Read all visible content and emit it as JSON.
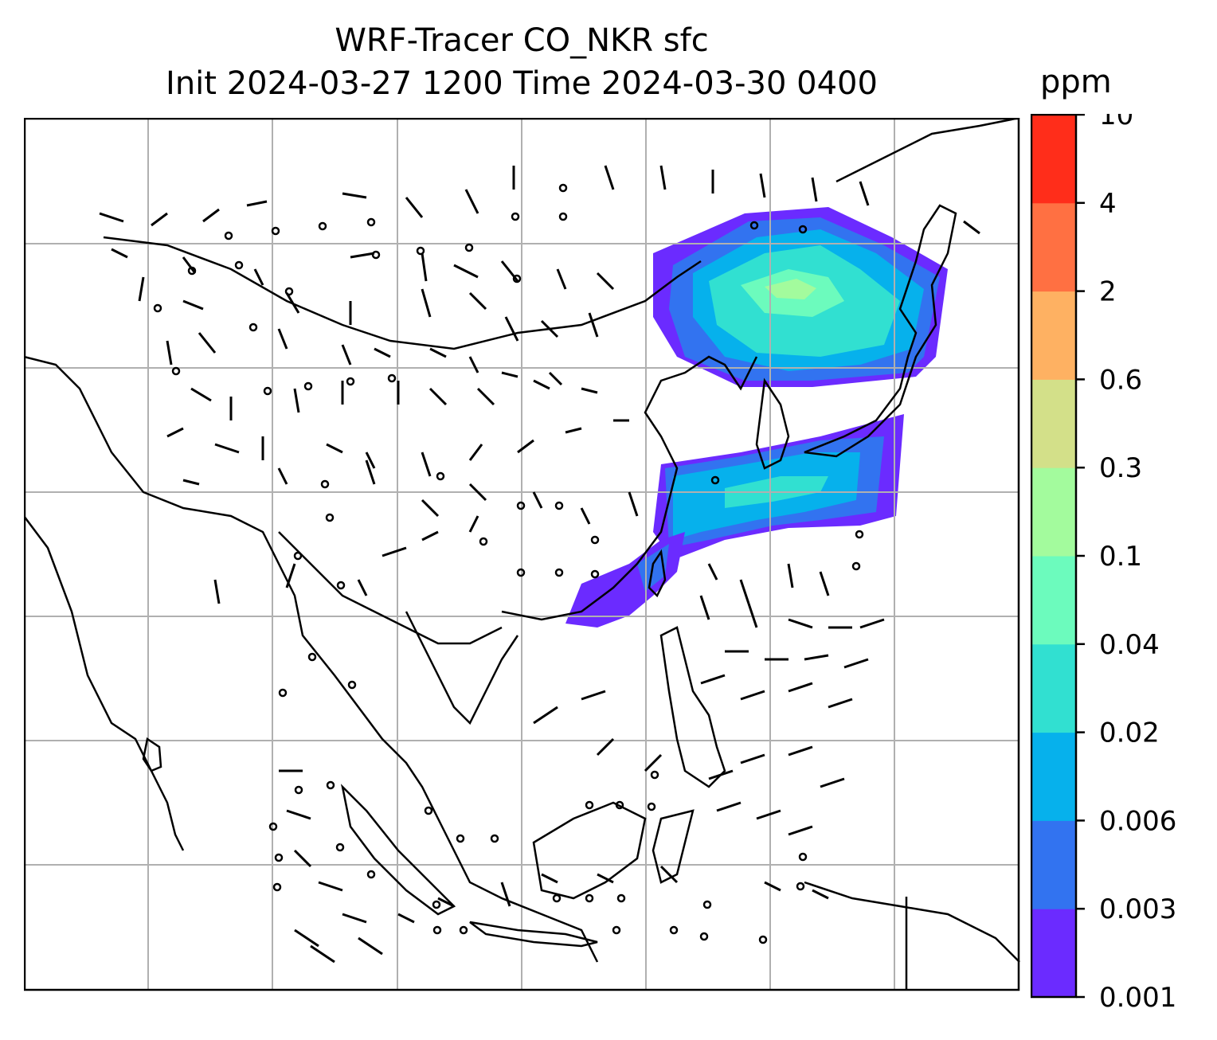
{
  "figure": {
    "title_line1": "WRF-Tracer CO_NKR sfc",
    "title_line2": "Init 2024-03-27 1200 Time 2024-03-30 0400"
  },
  "map": {
    "projection_grid": true,
    "features": [
      "coastlines",
      "country borders",
      "gridlines",
      "wind barbs",
      "tracer concentration shading"
    ],
    "tracer_plume": {
      "description_regions": [
        "northeast China / Korea / Sea of Japan",
        "central Japan to Pacific",
        "Taiwan / southeast coast of China"
      ]
    }
  },
  "colorbar": {
    "unit": "ppm",
    "levels": [
      "0.001",
      "0.003",
      "0.006",
      "0.02",
      "0.04",
      "0.1",
      "0.3",
      "0.6",
      "2",
      "4",
      "10"
    ],
    "colors": [
      "#6b2bff",
      "#3273f0",
      "#06b1ec",
      "#31e0d1",
      "#6cfbbd",
      "#a3fb9d",
      "#d3e089",
      "#feb162",
      "#ff7042",
      "#ff2d1a"
    ]
  }
}
